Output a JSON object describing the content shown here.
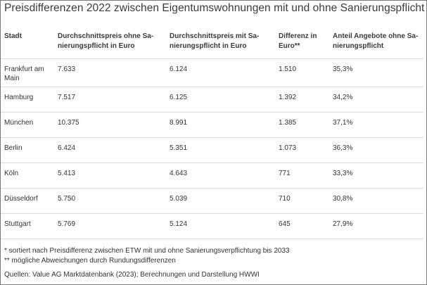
{
  "title": "Preisdifferenzen 2022 zwischen Eigentumswohnungen mit und ohne Sanierungspflicht",
  "table": {
    "headers": [
      "Stadt",
      "Durchschnittspreis ohne Sa-\nnierungspflicht in Euro",
      "Durchschnittspreis mit Sa-\nnierungspflicht in Euro",
      "Differenz in\nEuro**",
      "Anteil Angebote ohne Sa-\nnierungspflicht"
    ],
    "rows": [
      [
        "Frankfurt am Main",
        "7.633",
        "6.124",
        "1.510",
        "35,3%"
      ],
      [
        "Hamburg",
        "7.517",
        "6.125",
        "1.392",
        "34,2%"
      ],
      [
        "München",
        "10.375",
        "8.991",
        "1.385",
        "37,1%"
      ],
      [
        "Berlin",
        "6.424",
        "5.351",
        "1.073",
        "36,3%"
      ],
      [
        "Köln",
        "5.413",
        "4.643",
        "771",
        "33,3%"
      ],
      [
        "Düsseldorf",
        "5.750",
        "5.039",
        "710",
        "30,8%"
      ],
      [
        "Stuttgart",
        "5.769",
        "5.124",
        "645",
        "27,9%"
      ]
    ]
  },
  "footnotes": {
    "note1": "* sortiert nach Preisdifferenz zwischen ETW mit und ohne Sanierungsverpflichtung bis 2033",
    "note2": "** mögliche Abweichungen durch Rundungsdifferenzen",
    "source": "Quellen: Value AG Marktdatenbank (2023); Berechnungen und Darstellung HWWI"
  }
}
